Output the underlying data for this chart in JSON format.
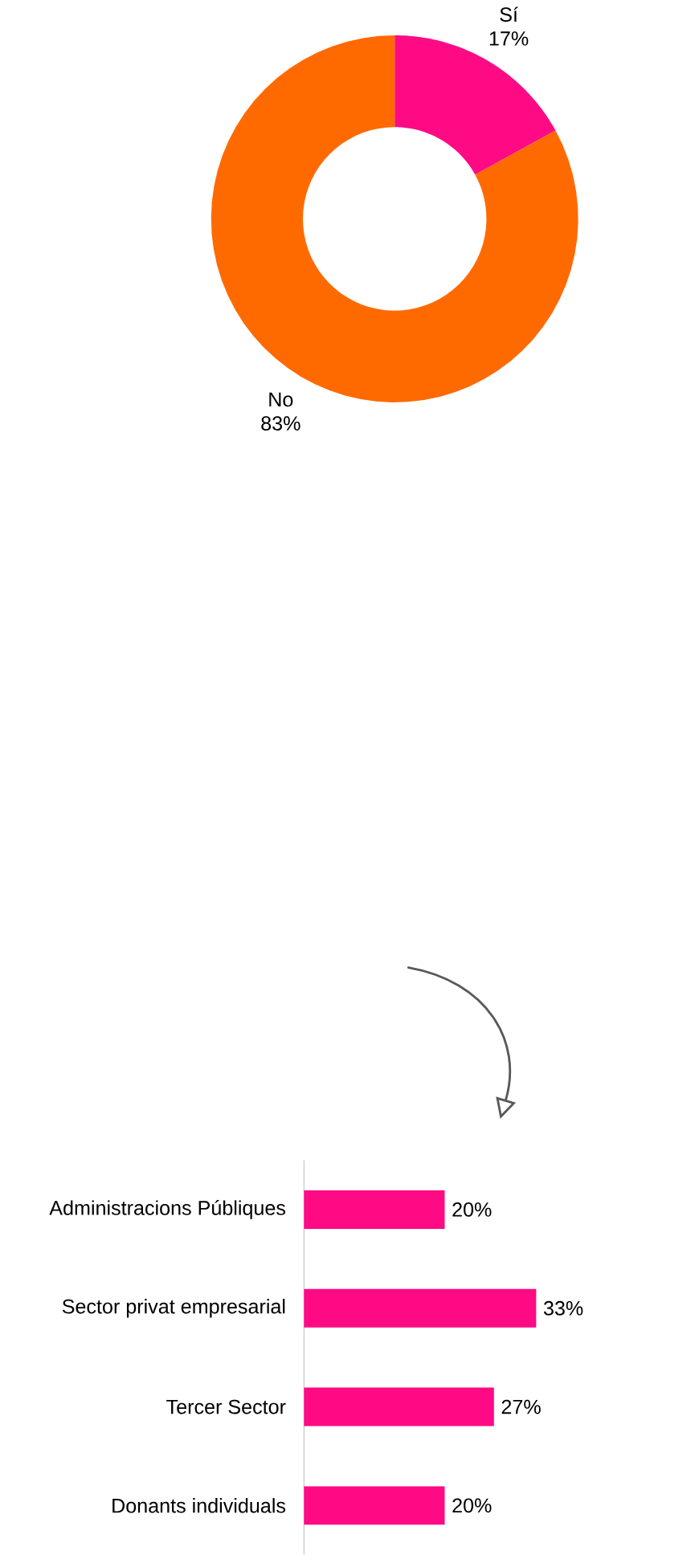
{
  "chart_data": [
    {
      "type": "donut",
      "categories": [
        "Sí",
        "No"
      ],
      "values": [
        17,
        83
      ],
      "colors": [
        "#ff0a85",
        "#ff6a00"
      ],
      "value_labels": [
        "17%",
        "83%"
      ]
    },
    {
      "type": "bar",
      "orientation": "horizontal",
      "categories": [
        "Administracions Públiques",
        "Sector privat empresarial",
        "Tercer Sector",
        "Donants individuals"
      ],
      "values": [
        20,
        33,
        27,
        20
      ],
      "color": "#ff0a85",
      "value_labels": [
        "20%",
        "33%",
        "27%",
        "20%"
      ]
    }
  ]
}
